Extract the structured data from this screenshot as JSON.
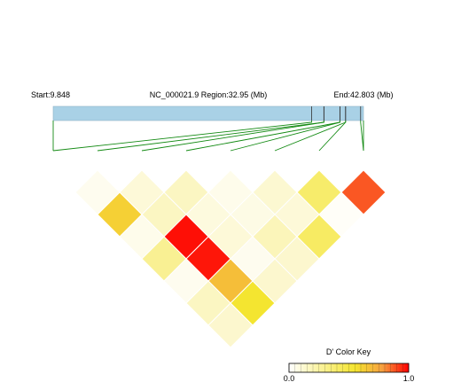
{
  "header": {
    "start_label": "Start:9.848",
    "region_label": "NC_000021.9 Region:32.95 (Mb)",
    "end_label": "End:42.803 (Mb)"
  },
  "colorkey": {
    "title": "D' Color Key",
    "min_label": "0.0",
    "max_label": "1.0"
  },
  "chart_data": {
    "type": "heatmap",
    "subtype": "LD triangle heatmap",
    "region": {
      "chrom": "NC_000021.9",
      "start_mb": 9.848,
      "end_mb": 42.803,
      "length_mb": 32.95
    },
    "snp_positions_mb": [
      37.3,
      38.6,
      38.6,
      40.3,
      40.3,
      40.9,
      40.9,
      42.5
    ],
    "color_scale": {
      "name": "D'",
      "range": [
        0,
        1
      ],
      "low_color": "#ffffff",
      "mid_color": "#f4e530",
      "high_color": "#ff0000"
    },
    "d_prime": [
      [
        1,
        2,
        0.05
      ],
      [
        2,
        3,
        0.12
      ],
      [
        3,
        4,
        0.18
      ],
      [
        4,
        5,
        0.06
      ],
      [
        5,
        6,
        0.14
      ],
      [
        6,
        7,
        0.4
      ],
      [
        7,
        8,
        0.88
      ],
      [
        1,
        3,
        0.62
      ],
      [
        2,
        4,
        0.18
      ],
      [
        3,
        5,
        0.1
      ],
      [
        4,
        6,
        0.08
      ],
      [
        5,
        7,
        0.12
      ],
      [
        6,
        8,
        0.02
      ],
      [
        1,
        4,
        0.06
      ],
      [
        2,
        5,
        0.98
      ],
      [
        3,
        6,
        0.12
      ],
      [
        4,
        7,
        0.2
      ],
      [
        5,
        8,
        0.42
      ],
      [
        1,
        5,
        0.3
      ],
      [
        2,
        6,
        0.97
      ],
      [
        3,
        7,
        0.05
      ],
      [
        4,
        8,
        0.15
      ],
      [
        1,
        6,
        0.05
      ],
      [
        2,
        7,
        0.68
      ],
      [
        3,
        8,
        0.15
      ],
      [
        1,
        7,
        0.18
      ],
      [
        2,
        8,
        0.55
      ],
      [
        1,
        8,
        0.15
      ]
    ]
  }
}
